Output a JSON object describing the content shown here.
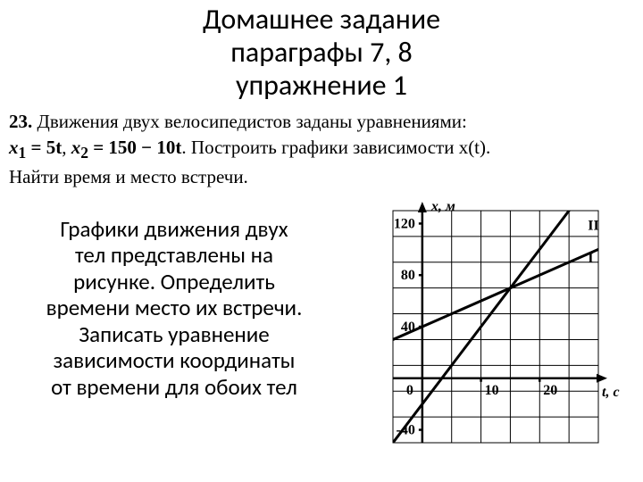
{
  "title": {
    "line1": "Домашнее задание",
    "line2": "параграфы 7, 8",
    "line3": "упражнение 1"
  },
  "problem": {
    "number": "23.",
    "lead": " Движения двух велосипедистов заданы уравнениями:",
    "eq_prefix": "x",
    "eq1_sub": "1",
    "eq1_rhs": " = 5t",
    "eq_sep": ",  ",
    "eq2_sub": "2",
    "eq2_rhs": " = 150 − 10t",
    "tail": ". Построить графики зависимости x(t).",
    "line3": "Найти время и место встречи."
  },
  "body": {
    "l1": "Графики движения двух",
    "l2": "тел представлены на",
    "l3": "рисунке. Определить",
    "l4": "времени место их встречи.",
    "l5": "Записать уравнение",
    "l6": "зависимости координаты",
    "l7": "от времени для обоих тел"
  },
  "chart": {
    "type": "line",
    "xlabel": "t, с",
    "ylabel": "x, м",
    "xlim": [
      -5,
      30
    ],
    "ylim": [
      -50,
      130
    ],
    "xtick_values": [
      0,
      10,
      20
    ],
    "ytick_values": [
      -40,
      0,
      40,
      80,
      120
    ],
    "xtick_labels": [
      "0",
      "10",
      "20"
    ],
    "ytick_labels": [
      "-40",
      "0",
      "40",
      "80",
      "120"
    ],
    "grid_step_x": 5,
    "grid_step_y": 20,
    "background_color": "#ffffff",
    "grid_color": "#000000",
    "grid_width": 1,
    "axis_color": "#000000",
    "axis_width": 2.5,
    "line_color": "#000000",
    "line_width": 3,
    "label_fontsize": 16,
    "tick_fontsize": 16,
    "series": [
      {
        "name": "I",
        "x": [
          -5,
          30
        ],
        "y": [
          30,
          100
        ],
        "label_xy": [
          27,
          90
        ]
      },
      {
        "name": "II",
        "x": [
          -5,
          30
        ],
        "y": [
          -50,
          160
        ],
        "label_xy": [
          27,
          115
        ]
      }
    ]
  }
}
